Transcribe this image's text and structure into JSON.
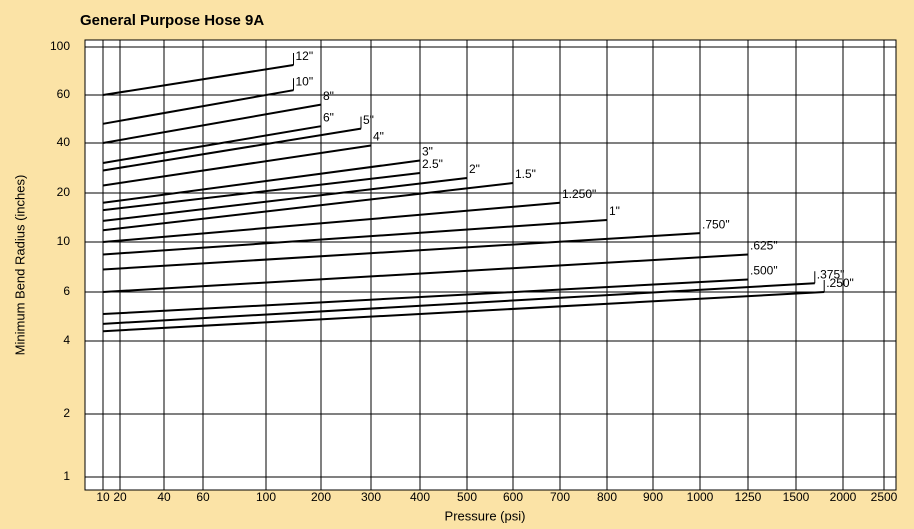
{
  "chart_data": {
    "type": "line",
    "title": "General Purpose Hose 9A",
    "xlabel": "Pressure (psi)",
    "ylabel": "Minimum Bend Radius (inches)",
    "color": "#000000",
    "xlim": [
      10,
      2500
    ],
    "ylim": [
      1,
      100
    ],
    "xticks": [
      10,
      20,
      40,
      60,
      100,
      200,
      300,
      400,
      500,
      600,
      700,
      800,
      900,
      1000,
      1250,
      1500,
      2000,
      2500
    ],
    "yticks": [
      1,
      2,
      4,
      6,
      10,
      20,
      40,
      60,
      100
    ],
    "grid": true,
    "series": [
      {
        "name": "12\"",
        "x": [
          10,
          150
        ],
        "values": [
          60,
          85
        ]
      },
      {
        "name": "10\"",
        "x": [
          10,
          150
        ],
        "values": [
          48,
          64
        ]
      },
      {
        "name": "8\"",
        "x": [
          10,
          200
        ],
        "values": [
          40,
          56
        ]
      },
      {
        "name": "6\"",
        "x": [
          10,
          200
        ],
        "values": [
          32,
          47
        ]
      },
      {
        "name": "5\"",
        "x": [
          10,
          280
        ],
        "values": [
          29,
          46
        ]
      },
      {
        "name": "4\"",
        "x": [
          10,
          300
        ],
        "values": [
          23,
          39
        ]
      },
      {
        "name": "3\"",
        "x": [
          10,
          400
        ],
        "values": [
          18,
          33
        ]
      },
      {
        "name": "2.5\"",
        "x": [
          10,
          400
        ],
        "values": [
          16.5,
          28
        ]
      },
      {
        "name": "2\"",
        "x": [
          10,
          500
        ],
        "values": [
          14.3,
          26
        ]
      },
      {
        "name": "1.5\"",
        "x": [
          10,
          600
        ],
        "values": [
          12.4,
          24
        ]
      },
      {
        "name": "1.250\"",
        "x": [
          10,
          700
        ],
        "values": [
          10,
          18
        ]
      },
      {
        "name": "1\"",
        "x": [
          10,
          800
        ],
        "values": [
          9,
          14.5
        ]
      },
      {
        "name": ".750\"",
        "x": [
          10,
          1000
        ],
        "values": [
          7.8,
          11.8
        ]
      },
      {
        "name": ".625\"",
        "x": [
          10,
          1250
        ],
        "values": [
          6,
          9
        ]
      },
      {
        "name": ".500\"",
        "x": [
          10,
          1250
        ],
        "values": [
          5.1,
          7
        ]
      },
      {
        "name": ".375\"",
        "x": [
          10,
          1700
        ],
        "values": [
          4.7,
          6.7
        ]
      },
      {
        "name": ".250\"",
        "x": [
          10,
          1800
        ],
        "values": [
          4.4,
          6
        ]
      }
    ]
  }
}
